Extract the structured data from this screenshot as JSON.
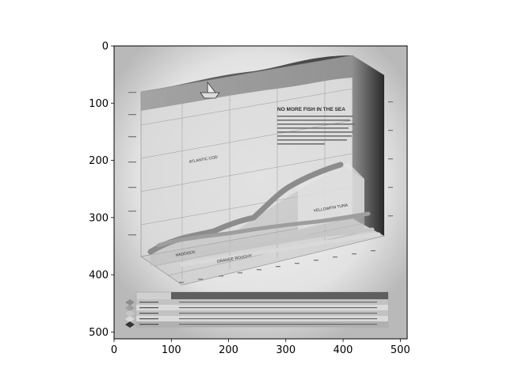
{
  "chart_data": {
    "type": "image",
    "image_title": "NO MORE FISH IN THE SEA",
    "embedded_labels": [
      "ATLANTIC COD",
      "YELLOWFIN TUNA",
      "HADDOCK",
      "ORANGE ROUGHY"
    ],
    "xlim": [
      0,
      512
    ],
    "ylim": [
      512,
      0
    ],
    "y_inverted": true,
    "xticks": [
      0,
      100,
      200,
      300,
      400,
      500
    ],
    "yticks": [
      0,
      100,
      200,
      300,
      400,
      500
    ],
    "xtick_labels": [
      "0",
      "100",
      "200",
      "300",
      "400",
      "500"
    ],
    "ytick_labels": [
      "0",
      "100",
      "200",
      "300",
      "400",
      "500"
    ],
    "grid": false,
    "colormap": "gray"
  }
}
